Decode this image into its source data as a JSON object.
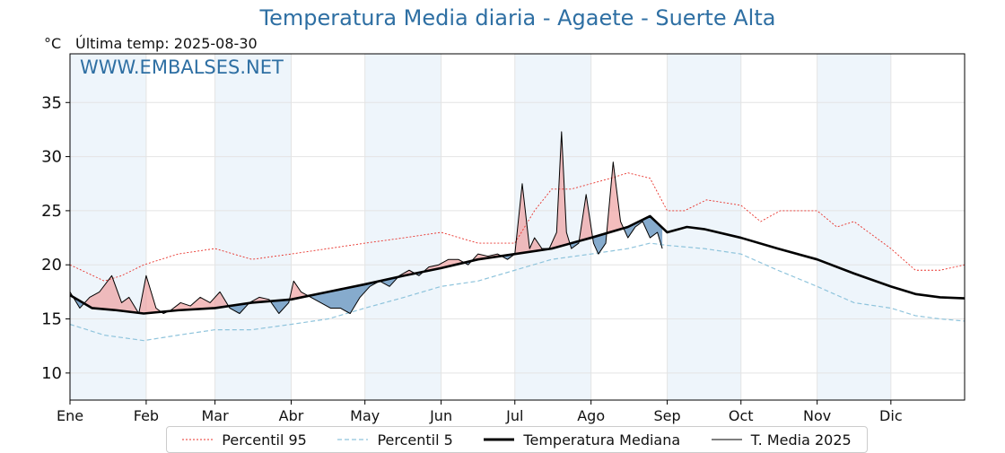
{
  "title": "Temperatura Media diaria - Agaete - Suerte Alta",
  "unit": "°C",
  "last_temp_label": "Última temp: 2025-08-30",
  "watermark": "WWW.EMBALSES.NET",
  "colors": {
    "title": "#2e6fa3",
    "p95": "#e8322b",
    "p5": "#8fc4dc",
    "median": "#000000",
    "mean2025": "#000000",
    "above_fill": "#ee9a9a",
    "below_fill": "#5d8fbc",
    "month_band": "#eef5fb"
  },
  "chart_data": {
    "type": "line",
    "x_unit": "day_of_year",
    "xlim": [
      1,
      365
    ],
    "ylim": [
      7.5,
      39.5
    ],
    "y_ticks": [
      10,
      15,
      20,
      25,
      30,
      35
    ],
    "month_ticks": [
      {
        "label": "Ene",
        "day": 1
      },
      {
        "label": "Feb",
        "day": 32
      },
      {
        "label": "Mar",
        "day": 60
      },
      {
        "label": "Abr",
        "day": 91
      },
      {
        "label": "May",
        "day": 121
      },
      {
        "label": "Jun",
        "day": 152
      },
      {
        "label": "Jul",
        "day": 182
      },
      {
        "label": "Ago",
        "day": 213
      },
      {
        "label": "Sep",
        "day": 244
      },
      {
        "label": "Oct",
        "day": 274
      },
      {
        "label": "Nov",
        "day": 305
      },
      {
        "label": "Dic",
        "day": 335
      }
    ],
    "grid": true,
    "legend_position": "bottom-center",
    "series": [
      {
        "key": "p95",
        "name": "Percentil 95",
        "x": [
          1,
          15,
          22,
          31,
          45,
          60,
          75,
          91,
          106,
          121,
          137,
          152,
          167,
          182,
          190,
          197,
          205,
          213,
          221,
          228,
          237,
          244,
          251,
          260,
          274,
          282,
          290,
          305,
          313,
          320,
          335,
          345,
          355,
          365
        ],
        "y": [
          20,
          18.5,
          19,
          20,
          21,
          21.5,
          20.5,
          21,
          21.5,
          22,
          22.5,
          23,
          22,
          22,
          25,
          27,
          27,
          27.5,
          28,
          28.5,
          28,
          25,
          25,
          26,
          25.5,
          24,
          25,
          25,
          23.5,
          24,
          21.5,
          19.5,
          19.5,
          20
        ]
      },
      {
        "key": "p5",
        "name": "Percentil 5",
        "x": [
          1,
          15,
          31,
          45,
          60,
          75,
          91,
          106,
          121,
          137,
          152,
          167,
          182,
          197,
          213,
          228,
          237,
          244,
          259,
          274,
          289,
          305,
          320,
          335,
          345,
          355,
          365
        ],
        "y": [
          14.5,
          13.5,
          13,
          13.5,
          14,
          14,
          14.5,
          15,
          16,
          17,
          18,
          18.5,
          19.5,
          20.5,
          21,
          21.5,
          22,
          21.8,
          21.5,
          21,
          19.5,
          18,
          16.5,
          16,
          15.3,
          15,
          14.8
        ]
      },
      {
        "key": "median",
        "name": "Temperatura Mediana",
        "x": [
          1,
          10,
          20,
          31,
          45,
          60,
          75,
          91,
          106,
          121,
          137,
          152,
          167,
          182,
          197,
          213,
          228,
          237,
          244,
          252,
          259,
          274,
          289,
          305,
          320,
          335,
          345,
          355,
          365
        ],
        "y": [
          17.2,
          16,
          15.8,
          15.5,
          15.8,
          16,
          16.5,
          16.8,
          17.5,
          18.2,
          19,
          19.7,
          20.5,
          21,
          21.5,
          22.5,
          23.5,
          24.5,
          23,
          23.5,
          23.3,
          22.5,
          21.5,
          20.5,
          19.2,
          18,
          17.3,
          17,
          16.9
        ]
      },
      {
        "key": "mean2025",
        "name": "T. Media 2025",
        "x": [
          1,
          5,
          9,
          13,
          18,
          22,
          25,
          29,
          32,
          36,
          39,
          42,
          46,
          50,
          54,
          58,
          62,
          66,
          70,
          74,
          78,
          82,
          86,
          90,
          92,
          95,
          99,
          103,
          107,
          111,
          115,
          119,
          123,
          127,
          131,
          135,
          139,
          143,
          147,
          151,
          155,
          159,
          163,
          167,
          171,
          175,
          179,
          182,
          185,
          188,
          190,
          193,
          196,
          199,
          201,
          203,
          205,
          208,
          211,
          214,
          216,
          219,
          222,
          225,
          228,
          231,
          234,
          237,
          240,
          242
        ],
        "y": [
          17.5,
          16,
          17,
          17.5,
          19,
          16.5,
          17,
          15.5,
          19,
          16,
          15.5,
          15.8,
          16.5,
          16.2,
          17,
          16.5,
          17.5,
          16,
          15.5,
          16.5,
          17,
          16.8,
          15.5,
          16.5,
          18.5,
          17.5,
          17,
          16.5,
          16,
          16,
          15.5,
          17,
          18,
          18.5,
          18,
          19,
          19.5,
          19,
          19.8,
          20,
          20.5,
          20.5,
          20,
          21,
          20.8,
          21,
          20.5,
          21,
          27.5,
          21.5,
          22.5,
          21.5,
          21.5,
          23,
          32.3,
          23,
          21.5,
          22,
          26.5,
          22,
          21,
          22,
          29.5,
          24,
          22.5,
          23.5,
          24,
          22.5,
          23,
          21.5
        ]
      }
    ]
  },
  "legend": {
    "p95": "Percentil 95",
    "p5": "Percentil 5",
    "median": "Temperatura Mediana",
    "mean2025": "T. Media 2025"
  }
}
